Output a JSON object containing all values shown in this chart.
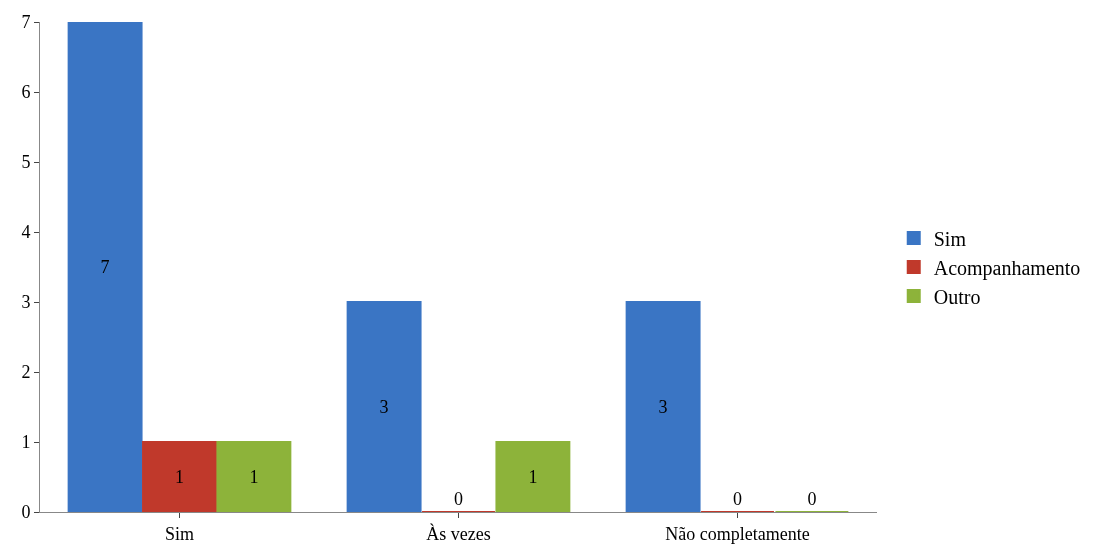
{
  "chart_data": {
    "type": "bar",
    "categories": [
      "Sim",
      "Às vezes",
      "Não completamente"
    ],
    "series": [
      {
        "name": "Sim",
        "color": "#3a75c4",
        "values": [
          7,
          3,
          3
        ]
      },
      {
        "name": "Acompanhamento",
        "color": "#c0392b",
        "values": [
          1,
          0,
          0
        ]
      },
      {
        "name": "Outro",
        "color": "#8db33a",
        "values": [
          1,
          1,
          0
        ]
      }
    ],
    "ylim": [
      0,
      7
    ],
    "yticks": [
      0,
      1,
      2,
      3,
      4,
      5,
      6,
      7
    ],
    "legend": "right",
    "data_labels": true
  }
}
